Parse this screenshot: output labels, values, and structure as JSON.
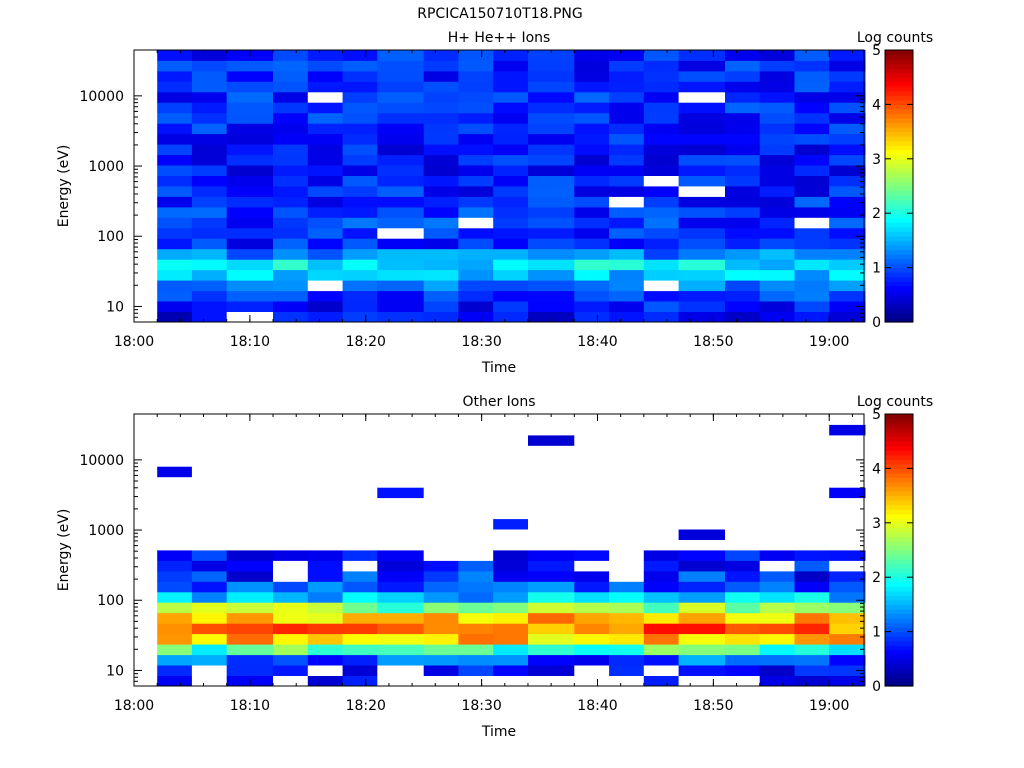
{
  "figure_title": "RPCICA150710T18.PNG",
  "colors": {
    "background": "#ffffff",
    "axis": "#000000",
    "low": "#00008f",
    "high": "#7f0000"
  },
  "chart_data": [
    {
      "type": "heatmap",
      "title": "H+ He++ Ions",
      "xlabel": "Time",
      "ylabel": "Energy (eV)",
      "x_ticks": [
        "18:00",
        "18:10",
        "18:20",
        "18:30",
        "18:40",
        "18:50",
        "19:00"
      ],
      "x_range": [
        "18:00",
        "19:03"
      ],
      "y_scale": "log",
      "y_ticks": [
        "10",
        "100",
        "1000",
        "10000"
      ],
      "y_range": [
        6,
        45000
      ],
      "colorbar": {
        "label": "Log counts",
        "range": [
          0,
          5
        ],
        "ticks": [
          "0",
          "1",
          "2",
          "3",
          "4",
          "5"
        ],
        "colormap": "jet"
      },
      "time_columns": [
        "18:02",
        "18:05",
        "18:08",
        "18:12",
        "18:15",
        "18:18",
        "18:21",
        "18:25",
        "18:28",
        "18:31",
        "18:34",
        "18:38",
        "18:41",
        "18:44",
        "18:47",
        "18:51",
        "18:54",
        "18:57",
        "19:00"
      ],
      "energy_profile_eV": [
        8,
        10,
        13,
        17,
        22,
        28,
        36,
        46,
        60,
        80,
        100,
        150,
        300,
        1000,
        10000,
        40000
      ],
      "typical_log_counts": [
        0.6,
        0.7,
        0.9,
        1.0,
        1.3,
        1.6,
        1.9,
        1.6,
        1.1,
        0.8,
        0.7,
        0.9,
        0.8,
        0.7,
        0.8,
        0.8
      ]
    },
    {
      "type": "heatmap",
      "title": "Other Ions",
      "xlabel": "Time",
      "ylabel": "Energy (eV)",
      "x_ticks": [
        "18:00",
        "18:10",
        "18:20",
        "18:30",
        "18:40",
        "18:50",
        "19:00"
      ],
      "x_range": [
        "18:00",
        "19:03"
      ],
      "y_scale": "log",
      "y_ticks": [
        "10",
        "100",
        "1000",
        "10000"
      ],
      "y_range": [
        6,
        45000
      ],
      "colorbar": {
        "label": "Log counts",
        "range": [
          0,
          5
        ],
        "ticks": [
          "0",
          "1",
          "2",
          "3",
          "4",
          "5"
        ],
        "colormap": "jet"
      },
      "time_columns": [
        "18:02",
        "18:05",
        "18:08",
        "18:12",
        "18:15",
        "18:18",
        "18:21",
        "18:25",
        "18:28",
        "18:31",
        "18:34",
        "18:38",
        "18:41",
        "18:44",
        "18:47",
        "18:51",
        "18:54",
        "18:57",
        "19:00"
      ],
      "energy_profile_eV": [
        8,
        10,
        13,
        17,
        22,
        28,
        36,
        46,
        60,
        80,
        100,
        150,
        300,
        1000,
        10000,
        40000
      ],
      "typical_log_counts": [
        0.4,
        0.5,
        0.8,
        1.5,
        2.6,
        3.4,
        3.8,
        3.9,
        3.2,
        2.5,
        1.8,
        1.0,
        0.6,
        0.3,
        0.2,
        0.2
      ]
    }
  ]
}
